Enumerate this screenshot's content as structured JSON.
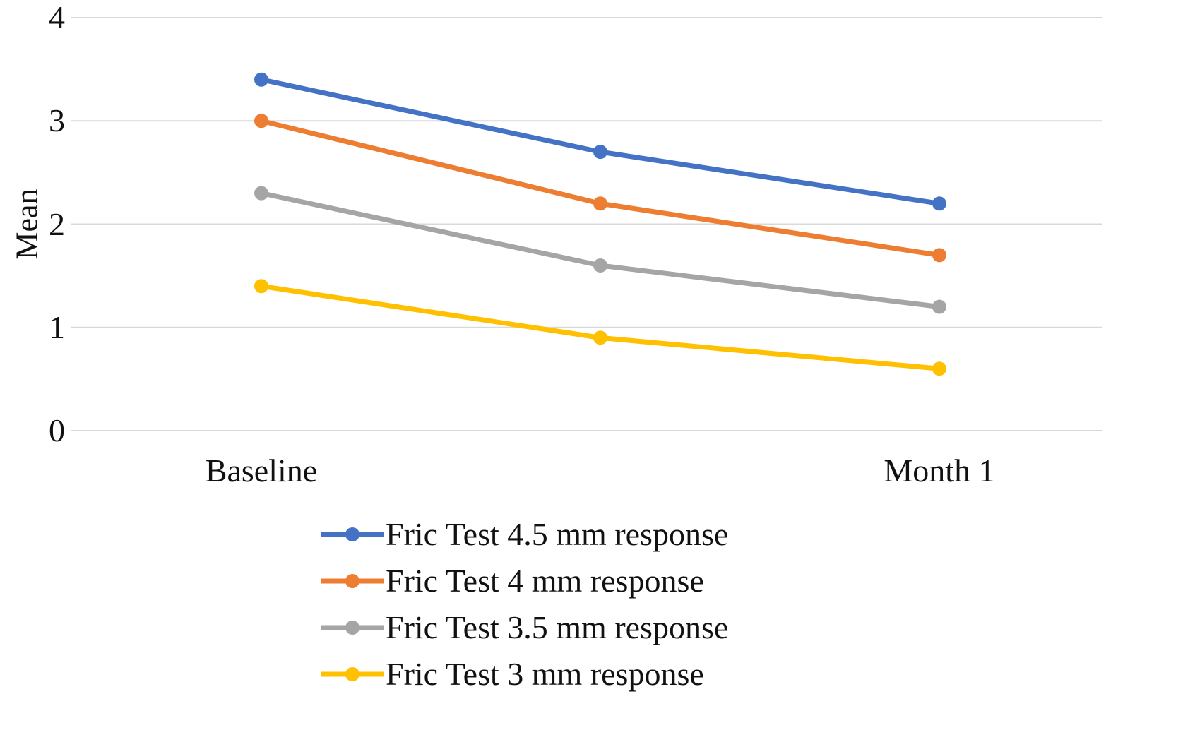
{
  "chart_data": {
    "type": "line",
    "title": "",
    "ylabel": "Mean",
    "xlabel": "",
    "ylim": [
      0,
      4
    ],
    "yticks": [
      0,
      1,
      2,
      3,
      4
    ],
    "grid": true,
    "legend_position": "bottom",
    "categories": [
      "Baseline",
      "",
      "Month 1"
    ],
    "series": [
      {
        "name": "Fric Test 4.5 mm response",
        "color": "#4472C4",
        "values": [
          3.4,
          2.7,
          2.2
        ]
      },
      {
        "name": "Fric Test 4 mm response",
        "color": "#ED7D31",
        "values": [
          3.0,
          2.2,
          1.7
        ]
      },
      {
        "name": "Fric Test 3.5 mm response",
        "color": "#A5A5A5",
        "values": [
          2.3,
          1.6,
          1.2
        ]
      },
      {
        "name": "Fric Test 3 mm response",
        "color": "#FFC000",
        "values": [
          1.4,
          0.9,
          0.6
        ]
      }
    ],
    "gridline_color": "#D9D9D9"
  }
}
